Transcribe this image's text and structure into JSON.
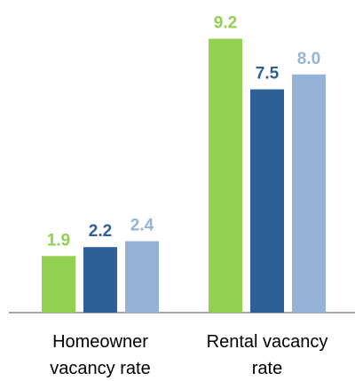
{
  "chart_data": {
    "type": "bar",
    "categories": [
      "Homeowner vacancy rate",
      "Rental vacancy rate"
    ],
    "series": [
      {
        "color": "#92d050",
        "values": [
          1.9,
          9.2
        ],
        "value_labels": [
          "1.9",
          "9.2"
        ]
      },
      {
        "color": "#2f5f98",
        "values": [
          2.2,
          7.5
        ],
        "value_labels": [
          "2.2",
          "7.5"
        ]
      },
      {
        "color": "#95b3d7",
        "values": [
          2.4,
          8.0
        ],
        "value_labels": [
          "2.4",
          "8.0"
        ]
      }
    ],
    "ylim": [
      0,
      10.5
    ]
  }
}
